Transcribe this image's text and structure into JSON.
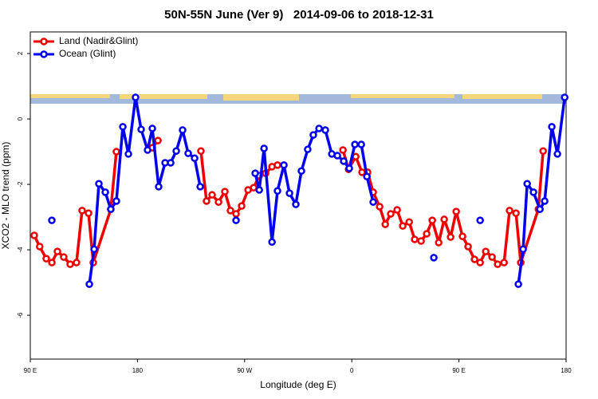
{
  "chart_data": {
    "type": "line",
    "title": "50N-55N June (Ver 9)   2014-09-06 to 2018-12-31",
    "xlabel": "Longitude (deg E)",
    "ylabel": "XCO2 - MLO trend (ppm)",
    "xlim": [
      90,
      540
    ],
    "ylim": [
      -7.34,
      2.66
    ],
    "xticks": [
      {
        "value": 90,
        "label": "90 E"
      },
      {
        "value": 180,
        "label": "180"
      },
      {
        "value": 270,
        "label": "90 W"
      },
      {
        "value": 360,
        "label": "0"
      },
      {
        "value": 450,
        "label": "90 E"
      },
      {
        "value": 540,
        "label": "180"
      }
    ],
    "yticks": [
      2,
      0,
      -2,
      -4,
      -6
    ],
    "legend": "top-left",
    "series": [
      {
        "name": "Land (Nadir&Glint)",
        "color": "#ee0000",
        "x": [
          93.3,
          97.9,
          103.4,
          108.1,
          112.8,
          118.1,
          123.5,
          128.8,
          133.5,
          138.9,
          142.9,
          157.6,
          162.3,
          null,
          192.5,
          197.2,
          null,
          233.3,
          238,
          242.7,
          248.1,
          253.4,
          258.1,
          262.8,
          267.5,
          272.9,
          277.6,
          282.3,
          287.6,
          293,
          297.6,
          null,
          352.6,
          357.3,
          363.3,
          368.6,
          373.3,
          378,
          383.4,
          388.1,
          392.7,
          398.1,
          402.8,
          408.2,
          412.8,
          418.2,
          422.9,
          427.6,
          433,
          437.6,
          443,
          447.7,
          453,
          457.7,
          463.1,
          467.8,
          472.5,
          477.8,
          482.5,
          487.9,
          492.5,
          497.9,
          501.9,
          516.7,
          520.7
        ],
        "values": [
          -3.56,
          -3.9,
          -4.27,
          -4.39,
          -4.05,
          -4.22,
          -4.44,
          -4.39,
          -2.8,
          -2.88,
          -4.39,
          -2.76,
          -1.0,
          null,
          -0.88,
          -0.66,
          null,
          -0.98,
          -2.51,
          -2.32,
          -2.54,
          -2.22,
          -2.8,
          -2.9,
          -2.66,
          -2.17,
          -2.1,
          -1.73,
          -1.66,
          -1.46,
          -1.41,
          null,
          -0.95,
          -1.54,
          -1.15,
          -1.63,
          -1.63,
          -2.24,
          -2.68,
          -3.22,
          -2.9,
          -2.78,
          -3.27,
          -3.15,
          -3.68,
          -3.73,
          -3.51,
          -3.1,
          -3.78,
          -3.07,
          -3.61,
          -2.83,
          -3.59,
          -3.9,
          -4.29,
          -4.39,
          -4.05,
          -4.22,
          -4.44,
          -4.39,
          -2.8,
          -2.88,
          -4.39,
          -2.76,
          -0.98
        ]
      },
      {
        "name": "Ocean (Glint)",
        "color": "#0000ee",
        "x": [
          108.1,
          null,
          139.6,
          143.6,
          147.6,
          153,
          157.6,
          162.3,
          167.7,
          172.4,
          178.4,
          183.1,
          188.5,
          192.5,
          197.8,
          203.2,
          207.9,
          212.6,
          217.9,
          222.6,
          228,
          232.7,
          null,
          262.8,
          null,
          278.9,
          282.3,
          286.3,
          293,
          297.6,
          303,
          307.7,
          313,
          317.7,
          323,
          327.7,
          332.5,
          337.8,
          343.2,
          347.9,
          353.2,
          357.9,
          362.6,
          368,
          372.7,
          378,
          null,
          428.9,
          null,
          467.8,
          null,
          499.9,
          503.9,
          507.3,
          512.6,
          518,
          522,
          528,
          532.7,
          538.8
        ],
        "values": [
          -3.1,
          null,
          -5.05,
          -3.98,
          -1.98,
          -2.24,
          -2.76,
          -2.51,
          -0.24,
          -1.07,
          0.66,
          -0.32,
          -0.95,
          -0.29,
          -2.07,
          -1.34,
          -1.34,
          -0.98,
          -0.34,
          -1.05,
          -1.2,
          -2.07,
          null,
          -3.1,
          null,
          -1.66,
          -2.17,
          -0.9,
          -3.76,
          -2.2,
          -1.41,
          -2.27,
          -2.61,
          -1.59,
          -0.93,
          -0.49,
          -0.29,
          -0.34,
          -1.07,
          -1.12,
          -1.29,
          -1.51,
          -0.78,
          -0.78,
          -1.76,
          -2.54,
          null,
          -4.24,
          null,
          -3.1,
          null,
          -5.05,
          -3.98,
          -1.98,
          -2.24,
          -2.76,
          -2.51,
          -0.24,
          -1.07,
          0.66
        ]
      }
    ]
  }
}
